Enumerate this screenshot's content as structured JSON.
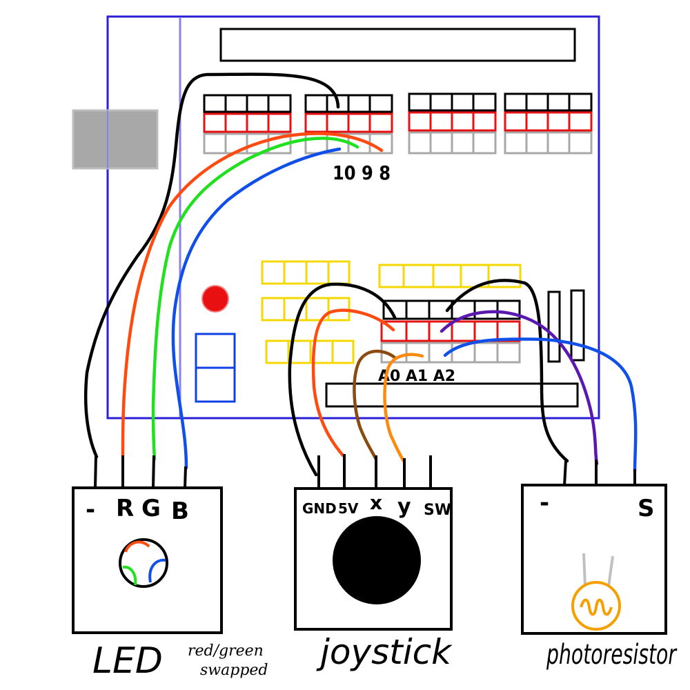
{
  "labels": {
    "digital_pins": "10 9 8",
    "analog_pins": "A0 A1 A2"
  },
  "modules": {
    "led": {
      "name": "LED",
      "pins": [
        "-",
        "R",
        "G",
        "B"
      ],
      "note_line1": "red/green",
      "note_line2": "swapped"
    },
    "joystick": {
      "name": "joystick",
      "pins": [
        "GND",
        "5V",
        "x",
        "y",
        "SW"
      ]
    },
    "photoresistor": {
      "name": "photoresistor",
      "pins": [
        "-",
        "S"
      ]
    }
  },
  "colors": {
    "board_outline": "#2a1fd6",
    "header_top": "#000000",
    "header_mid": "#e81010",
    "header_bottom": "#a8a8a8",
    "yellow_header": "#f5d800",
    "wire_black": "#000000",
    "wire_red": "#ff4a10",
    "wire_green": "#20e020",
    "wire_blue": "#1050e8",
    "wire_brown": "#8a4a10",
    "wire_orange": "#ff8a10",
    "wire_purple": "#5a18b0",
    "reset_button": "#e81010",
    "usb_gray": "#a8a8a8",
    "photoresistor_ring": "#f5a000"
  }
}
